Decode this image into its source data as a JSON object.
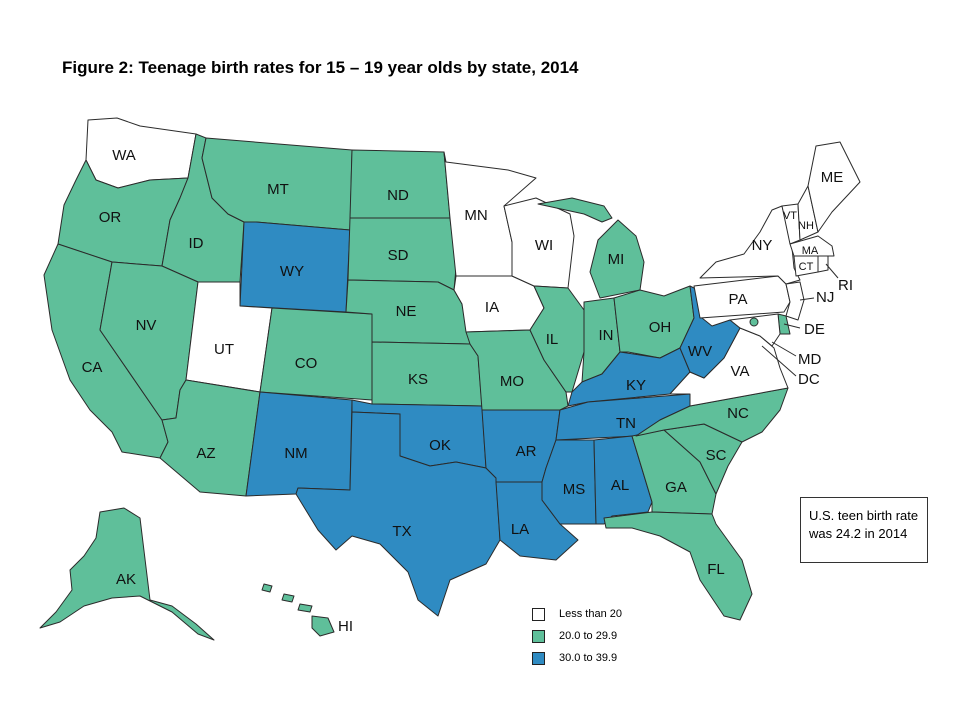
{
  "title": "Figure 2: Teenage birth rates for 15 – 19 year olds by state, 2014",
  "note": {
    "line1": "U.S. teen birth rate",
    "line2": "was 24.2 in 2014"
  },
  "colors": {
    "low": "#ffffff",
    "mid": "#5fbf9a",
    "high": "#2f8bc2"
  },
  "legend": [
    {
      "key": "low",
      "label": "Less than 20"
    },
    {
      "key": "mid",
      "label": "20.0 to 29.9"
    },
    {
      "key": "high",
      "label": "30.0 to 39.9"
    }
  ],
  "states": {
    "WA": "low",
    "OR": "mid",
    "CA": "mid",
    "ID": "mid",
    "NV": "mid",
    "MT": "mid",
    "WY": "high",
    "UT": "low",
    "AZ": "mid",
    "CO": "mid",
    "NM": "high",
    "ND": "mid",
    "SD": "mid",
    "NE": "mid",
    "KS": "mid",
    "OK": "high",
    "TX": "high",
    "MN": "low",
    "IA": "low",
    "MO": "mid",
    "AR": "high",
    "LA": "high",
    "WI": "low",
    "IL": "mid",
    "MI": "mid",
    "IN": "mid",
    "OH": "mid",
    "KY": "high",
    "TN": "high",
    "MS": "high",
    "AL": "high",
    "GA": "mid",
    "FL": "mid",
    "SC": "mid",
    "NC": "mid",
    "VA": "low",
    "WV": "high",
    "PA": "low",
    "NY": "low",
    "VT": "low",
    "NH": "low",
    "ME": "low",
    "MA": "low",
    "RI": "low",
    "CT": "low",
    "NJ": "low",
    "DE": "mid",
    "MD": "low",
    "DC": "mid",
    "AK": "mid",
    "HI": "mid"
  }
}
